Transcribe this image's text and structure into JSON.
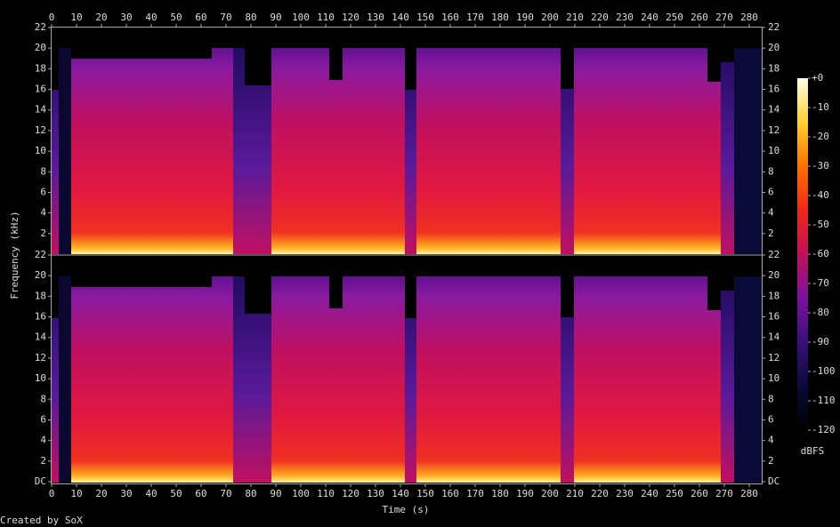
{
  "chart_data": {
    "type": "spectrogram",
    "x_label": "Time (s)",
    "y_label": "Frequency (kHz)",
    "credit": "Created by SoX",
    "xlim": [
      0,
      285
    ],
    "xticks": [
      0,
      10,
      20,
      30,
      40,
      50,
      60,
      70,
      80,
      90,
      100,
      110,
      120,
      130,
      140,
      150,
      160,
      170,
      180,
      190,
      200,
      210,
      220,
      230,
      240,
      250,
      260,
      270,
      280
    ],
    "channels": [
      {
        "ylim": [
          0,
          22
        ],
        "yticks": [
          2,
          4,
          6,
          8,
          10,
          12,
          14,
          16,
          18,
          20,
          22
        ]
      },
      {
        "ylim": [
          0,
          22
        ],
        "yticks": [
          {
            "value": 0,
            "label": "DC"
          },
          2,
          4,
          6,
          8,
          10,
          12,
          14,
          16,
          18,
          20,
          22
        ]
      }
    ],
    "colorbar": {
      "label": "dBFS",
      "lim": [
        -120,
        0
      ],
      "ticks": [
        {
          "value": 0,
          "label": "+0"
        },
        -10,
        -20,
        -30,
        -40,
        -50,
        -60,
        -70,
        -80,
        -90,
        -100,
        -110,
        -120
      ],
      "colormap": [
        "#000000",
        "#0a0a3a",
        "#3a0f7a",
        "#7a12a0",
        "#c0105a",
        "#f02818",
        "#ff7000",
        "#ffd030",
        "#ffffe8"
      ]
    }
  }
}
